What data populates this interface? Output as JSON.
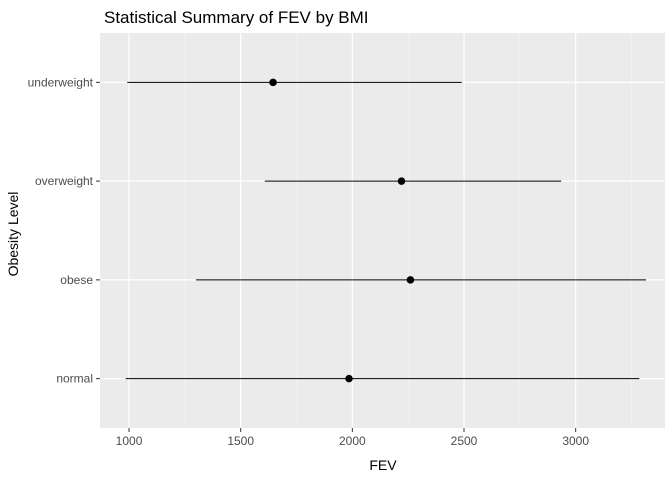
{
  "chart_data": {
    "type": "pointrange",
    "title": "Statistical Summary of FEV by BMI",
    "xlabel": "FEV",
    "ylabel": "Obesity Level",
    "xlim": [
      870,
      3400
    ],
    "x_ticks": [
      1000,
      1500,
      2000,
      2500,
      3000
    ],
    "x_tick_labels": [
      "1000",
      "1500",
      "2000",
      "2500",
      "3000"
    ],
    "categories": [
      "underweight",
      "overweight",
      "obese",
      "normal"
    ],
    "points": [
      {
        "category": "underweight",
        "center": 1645,
        "min": 992,
        "max": 2490
      },
      {
        "category": "overweight",
        "center": 2220,
        "min": 1608,
        "max": 2935
      },
      {
        "category": "obese",
        "center": 2260,
        "min": 1300,
        "max": 3315
      },
      {
        "category": "normal",
        "center": 1985,
        "min": 985,
        "max": 3285
      }
    ],
    "grid": true,
    "colors": {
      "panel_background": "#ebebeb",
      "grid_major": "#ffffff",
      "grid_minor": "#f5f5f5",
      "mark": "#000000"
    }
  }
}
